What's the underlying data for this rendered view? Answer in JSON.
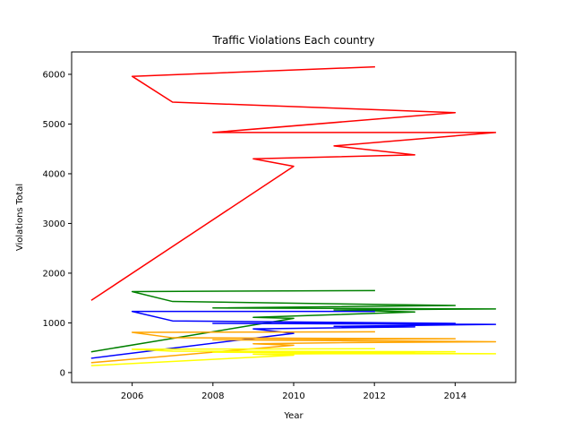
{
  "chart_data": {
    "type": "line",
    "title": "Traffic Violations Each country",
    "xlabel": "Year",
    "ylabel": "Violations Total",
    "xlim": [
      2004.5,
      2015.5
    ],
    "ylim": [
      -200,
      6450
    ],
    "xticks": [
      2006,
      2008,
      2010,
      2012,
      2014
    ],
    "yticks": [
      0,
      1000,
      2000,
      3000,
      4000,
      5000,
      6000
    ],
    "grid": false,
    "legend": "none",
    "series": [
      {
        "color": "#ff0000",
        "points": [
          [
            2005,
            1460
          ],
          [
            2010,
            4150
          ],
          [
            2009,
            4300
          ],
          [
            2013,
            4380
          ],
          [
            2011,
            4560
          ],
          [
            2015,
            4830
          ],
          [
            2008,
            4830
          ],
          [
            2014,
            5230
          ],
          [
            2007,
            5440
          ],
          [
            2006,
            5960
          ],
          [
            2012,
            6150
          ]
        ]
      },
      {
        "color": "#008000",
        "points": [
          [
            2005,
            420
          ],
          [
            2010,
            1090
          ],
          [
            2009,
            1110
          ],
          [
            2013,
            1220
          ],
          [
            2011,
            1260
          ],
          [
            2015,
            1280
          ],
          [
            2008,
            1300
          ],
          [
            2014,
            1350
          ],
          [
            2007,
            1430
          ],
          [
            2006,
            1630
          ],
          [
            2012,
            1650
          ]
        ]
      },
      {
        "color": "#0000ff",
        "points": [
          [
            2005,
            290
          ],
          [
            2010,
            790
          ],
          [
            2009,
            880
          ],
          [
            2013,
            920
          ],
          [
            2011,
            930
          ],
          [
            2015,
            970
          ],
          [
            2008,
            990
          ],
          [
            2014,
            990
          ],
          [
            2007,
            1040
          ],
          [
            2006,
            1230
          ],
          [
            2012,
            1230
          ]
        ]
      },
      {
        "color": "#ffa500",
        "points": [
          [
            2005,
            200
          ],
          [
            2010,
            550
          ],
          [
            2009,
            580
          ],
          [
            2013,
            620
          ],
          [
            2011,
            600
          ],
          [
            2015,
            620
          ],
          [
            2008,
            660
          ],
          [
            2014,
            680
          ],
          [
            2007,
            700
          ],
          [
            2006,
            810
          ],
          [
            2012,
            820
          ]
        ]
      },
      {
        "color": "#ffff00",
        "points": [
          [
            2005,
            140
          ],
          [
            2010,
            350
          ],
          [
            2009,
            370
          ],
          [
            2013,
            390
          ],
          [
            2011,
            380
          ],
          [
            2015,
            380
          ],
          [
            2008,
            410
          ],
          [
            2014,
            420
          ],
          [
            2007,
            430
          ],
          [
            2006,
            470
          ],
          [
            2012,
            480
          ]
        ]
      }
    ]
  }
}
